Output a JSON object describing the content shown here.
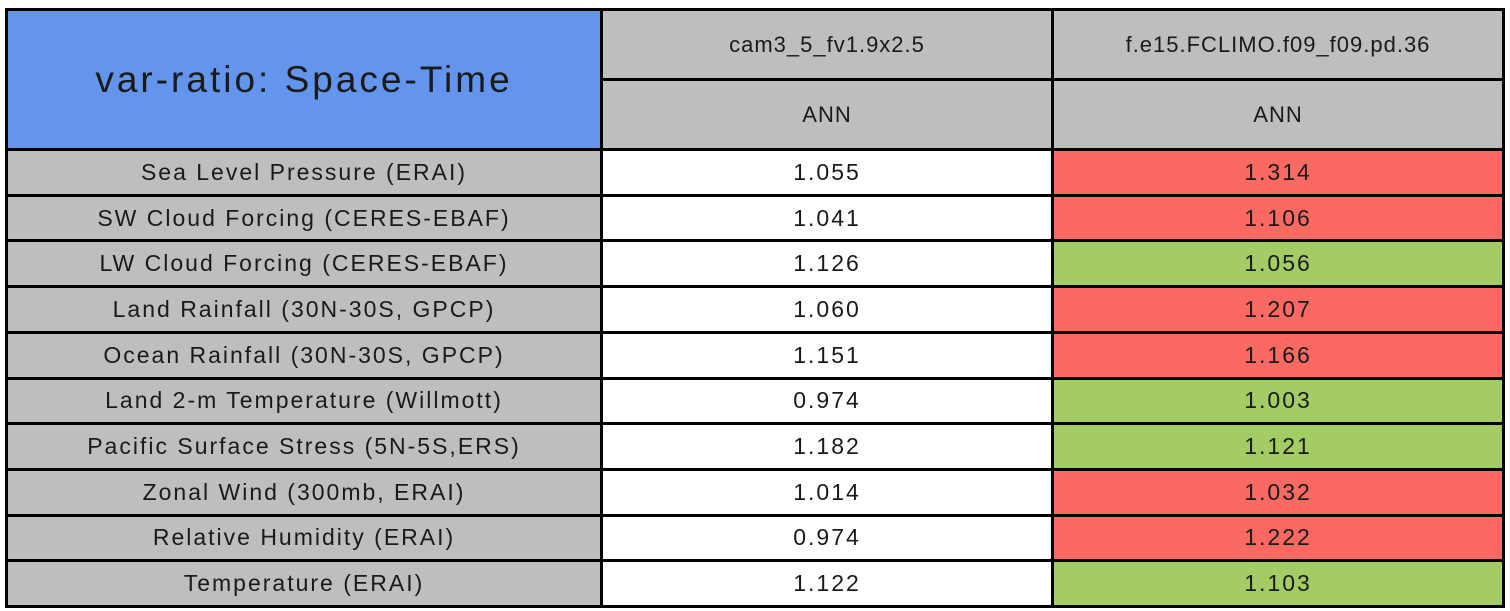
{
  "table": {
    "title": "var-ratio: Space-Time",
    "columns": [
      {
        "model": "cam3_5_fv1.9x2.5",
        "season": "ANN"
      },
      {
        "model": "f.e15.FCLIMO.f09_f09.pd.36",
        "season": "ANN"
      }
    ],
    "rows": [
      {
        "label": "Sea Level Pressure (ERAI)",
        "values": [
          {
            "text": "1.055",
            "status": "neutral"
          },
          {
            "text": "1.314",
            "status": "worse"
          }
        ]
      },
      {
        "label": "SW Cloud Forcing (CERES-EBAF)",
        "values": [
          {
            "text": "1.041",
            "status": "neutral"
          },
          {
            "text": "1.106",
            "status": "worse"
          }
        ]
      },
      {
        "label": "LW Cloud Forcing (CERES-EBAF)",
        "values": [
          {
            "text": "1.126",
            "status": "neutral"
          },
          {
            "text": "1.056",
            "status": "better"
          }
        ]
      },
      {
        "label": "Land Rainfall (30N-30S, GPCP)",
        "values": [
          {
            "text": "1.060",
            "status": "neutral"
          },
          {
            "text": "1.207",
            "status": "worse"
          }
        ]
      },
      {
        "label": "Ocean Rainfall (30N-30S, GPCP)",
        "values": [
          {
            "text": "1.151",
            "status": "neutral"
          },
          {
            "text": "1.166",
            "status": "worse"
          }
        ]
      },
      {
        "label": "Land 2-m Temperature (Willmott)",
        "values": [
          {
            "text": "0.974",
            "status": "neutral"
          },
          {
            "text": "1.003",
            "status": "better"
          }
        ]
      },
      {
        "label": "Pacific Surface Stress (5N-5S,ERS)",
        "values": [
          {
            "text": "1.182",
            "status": "neutral"
          },
          {
            "text": "1.121",
            "status": "better"
          }
        ]
      },
      {
        "label": "Zonal Wind (300mb, ERAI)",
        "values": [
          {
            "text": "1.014",
            "status": "neutral"
          },
          {
            "text": "1.032",
            "status": "worse"
          }
        ]
      },
      {
        "label": "Relative Humidity (ERAI)",
        "values": [
          {
            "text": "0.974",
            "status": "neutral"
          },
          {
            "text": "1.222",
            "status": "worse"
          }
        ]
      },
      {
        "label": "Temperature (ERAI)",
        "values": [
          {
            "text": "1.122",
            "status": "neutral"
          },
          {
            "text": "1.103",
            "status": "better"
          }
        ]
      }
    ]
  },
  "colors": {
    "title_bg": "#6495ED",
    "header_bg": "#BEBEBE",
    "label_bg": "#BEBEBE",
    "value_bg": "#FFFFFF",
    "worse_bg": "#FA6A63",
    "better_bg": "#A4CC64",
    "border": "#000000",
    "text": "#1A1A1A"
  },
  "chart_data": {
    "type": "table",
    "title": "var-ratio: Space-Time",
    "row_labels": [
      "Sea Level Pressure (ERAI)",
      "SW Cloud Forcing (CERES-EBAF)",
      "LW Cloud Forcing (CERES-EBAF)",
      "Land Rainfall (30N-30S, GPCP)",
      "Ocean Rainfall (30N-30S, GPCP)",
      "Land 2-m Temperature (Willmott)",
      "Pacific Surface Stress (5N-5S,ERS)",
      "Zonal Wind (300mb, ERAI)",
      "Relative Humidity (ERAI)",
      "Temperature (ERAI)"
    ],
    "series": [
      {
        "name": "cam3_5_fv1.9x2.5",
        "season": "ANN",
        "values": [
          1.055,
          1.041,
          1.126,
          1.06,
          1.151,
          0.974,
          1.182,
          1.014,
          0.974,
          1.122
        ],
        "cell_status": [
          "neutral",
          "neutral",
          "neutral",
          "neutral",
          "neutral",
          "neutral",
          "neutral",
          "neutral",
          "neutral",
          "neutral"
        ]
      },
      {
        "name": "f.e15.FCLIMO.f09_f09.pd.36",
        "season": "ANN",
        "values": [
          1.314,
          1.106,
          1.056,
          1.207,
          1.166,
          1.003,
          1.121,
          1.032,
          1.222,
          1.103
        ],
        "cell_status": [
          "worse",
          "worse",
          "better",
          "worse",
          "worse",
          "better",
          "better",
          "worse",
          "worse",
          "better"
        ]
      }
    ]
  }
}
